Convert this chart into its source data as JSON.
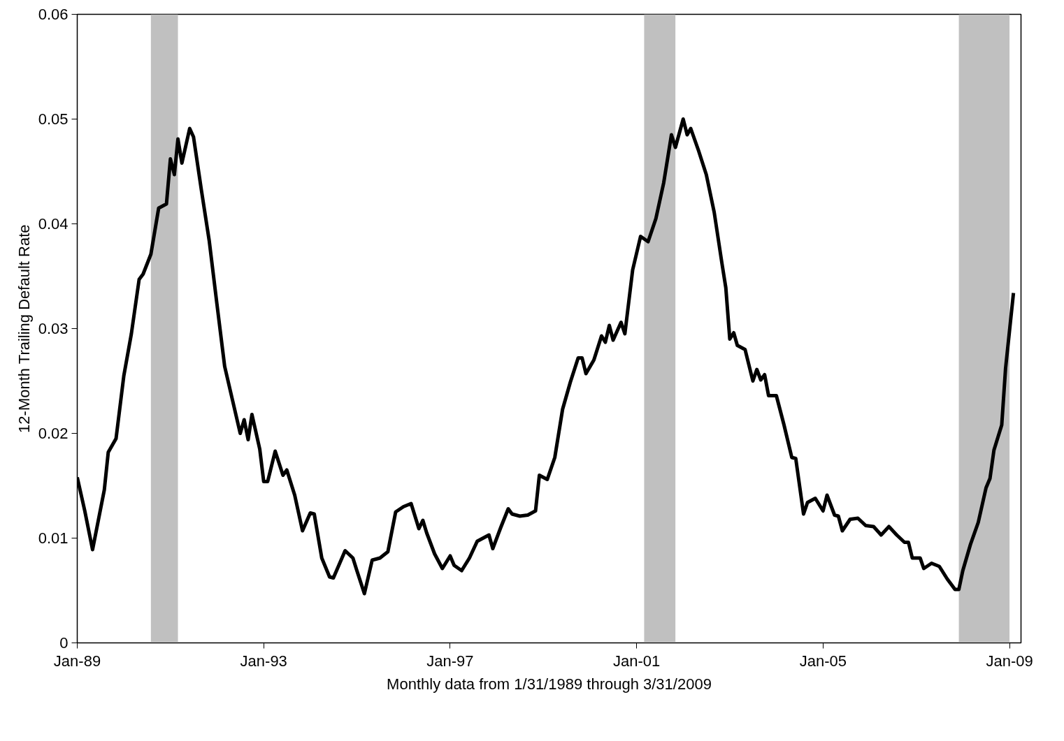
{
  "chart_data": {
    "type": "line",
    "xlabel": "Monthly data from 1/31/1989 through 3/31/2009",
    "ylabel": "12-Month Trailing Default Rate",
    "x": [
      "1989-01",
      "1989-03",
      "1989-05",
      "1989-08",
      "1989-09",
      "1989-11",
      "1990-01",
      "1990-03",
      "1990-05",
      "1990-06",
      "1990-08",
      "1990-10",
      "1990-12",
      "1991-01",
      "1991-02",
      "1991-03",
      "1991-04",
      "1991-06",
      "1991-07",
      "1991-09",
      "1991-11",
      "1992-01",
      "1992-03",
      "1992-05",
      "1992-07",
      "1992-08",
      "1992-09",
      "1992-10",
      "1992-12",
      "1993-01",
      "1993-02",
      "1993-04",
      "1993-06",
      "1993-07",
      "1993-09",
      "1993-11",
      "1994-01",
      "1994-02",
      "1994-04",
      "1994-06",
      "1994-07",
      "1994-10",
      "1994-12",
      "1995-01",
      "1995-03",
      "1995-05",
      "1995-07",
      "1995-09",
      "1995-11",
      "1996-01",
      "1996-03",
      "1996-05",
      "1996-06",
      "1996-07",
      "1996-09",
      "1996-11",
      "1997-01",
      "1997-02",
      "1997-04",
      "1997-06",
      "1997-08",
      "1997-11",
      "1997-12",
      "1998-02",
      "1998-04",
      "1998-05",
      "1998-07",
      "1998-09",
      "1998-11",
      "1998-12",
      "1999-02",
      "1999-04",
      "1999-06",
      "1999-08",
      "1999-10",
      "1999-11",
      "1999-12",
      "2000-02",
      "2000-04",
      "2000-05",
      "2000-06",
      "2000-07",
      "2000-09",
      "2000-10",
      "2000-12",
      "2001-02",
      "2001-04",
      "2001-06",
      "2001-08",
      "2001-10",
      "2001-11",
      "2002-01",
      "2002-02",
      "2002-03",
      "2002-05",
      "2002-07",
      "2002-09",
      "2002-11",
      "2002-12",
      "2003-01",
      "2003-02",
      "2003-03",
      "2003-05",
      "2003-07",
      "2003-08",
      "2003-09",
      "2003-10",
      "2003-11",
      "2004-01",
      "2004-03",
      "2004-05",
      "2004-06",
      "2004-08",
      "2004-09",
      "2004-11",
      "2005-01",
      "2005-02",
      "2005-04",
      "2005-05",
      "2005-06",
      "2005-08",
      "2005-10",
      "2005-12",
      "2006-02",
      "2006-04",
      "2006-06",
      "2006-08",
      "2006-10",
      "2006-11",
      "2006-12",
      "2007-02",
      "2007-03",
      "2007-05",
      "2007-07",
      "2007-09",
      "2007-11",
      "2007-12",
      "2008-01",
      "2008-03",
      "2008-05",
      "2008-07",
      "2008-08",
      "2008-09",
      "2008-11",
      "2008-12",
      "2009-01",
      "2009-02"
    ],
    "series": [
      {
        "color": "#000000",
        "values": [
          0.0158,
          0.0126,
          0.0089,
          0.0146,
          0.0182,
          0.0195,
          0.0255,
          0.0295,
          0.0347,
          0.0352,
          0.0371,
          0.0415,
          0.0419,
          0.0462,
          0.0447,
          0.0481,
          0.0458,
          0.0491,
          0.0483,
          0.0432,
          0.0384,
          0.0323,
          0.0264,
          0.0232,
          0.02,
          0.0213,
          0.0194,
          0.0218,
          0.0185,
          0.0154,
          0.0154,
          0.0183,
          0.016,
          0.0165,
          0.0141,
          0.0107,
          0.0124,
          0.0123,
          0.0081,
          0.0063,
          0.0062,
          0.0088,
          0.0081,
          0.0069,
          0.0047,
          0.0079,
          0.0081,
          0.0087,
          0.0125,
          0.013,
          0.0133,
          0.0109,
          0.0117,
          0.0105,
          0.0085,
          0.0071,
          0.0083,
          0.0074,
          0.0069,
          0.0081,
          0.0097,
          0.0103,
          0.009,
          0.011,
          0.0128,
          0.0123,
          0.0121,
          0.0122,
          0.0126,
          0.016,
          0.0156,
          0.0177,
          0.0223,
          0.0249,
          0.0272,
          0.0272,
          0.0257,
          0.027,
          0.0293,
          0.0287,
          0.0303,
          0.0289,
          0.0306,
          0.0295,
          0.0356,
          0.0388,
          0.0383,
          0.0405,
          0.0439,
          0.0485,
          0.0473,
          0.05,
          0.0485,
          0.0491,
          0.047,
          0.0447,
          0.0411,
          0.0362,
          0.0339,
          0.029,
          0.0296,
          0.0284,
          0.028,
          0.025,
          0.0261,
          0.0251,
          0.0256,
          0.0236,
          0.0236,
          0.0208,
          0.0177,
          0.0176,
          0.0123,
          0.0134,
          0.0138,
          0.0126,
          0.0141,
          0.0122,
          0.0121,
          0.0107,
          0.0118,
          0.0119,
          0.0112,
          0.0111,
          0.0103,
          0.0111,
          0.0103,
          0.0096,
          0.0096,
          0.0081,
          0.0081,
          0.0071,
          0.0076,
          0.0073,
          0.0061,
          0.0051,
          0.0051,
          0.0069,
          0.0094,
          0.0115,
          0.0148,
          0.0157,
          0.0184,
          0.0208,
          0.0262,
          0.0298,
          0.0334
        ]
      }
    ],
    "xlim": [
      "1989-01",
      "2009-04"
    ],
    "xticks": [
      {
        "value": "1989-01",
        "label": "Jan-89"
      },
      {
        "value": "1993-01",
        "label": "Jan-93"
      },
      {
        "value": "1997-01",
        "label": "Jan-97"
      },
      {
        "value": "2001-01",
        "label": "Jan-01"
      },
      {
        "value": "2005-01",
        "label": "Jan-05"
      },
      {
        "value": "2009-01",
        "label": "Jan-09"
      }
    ],
    "ylim": [
      0,
      0.06
    ],
    "yticks": [
      0,
      0.01,
      0.02,
      0.03,
      0.04,
      0.05,
      0.06
    ],
    "bands": [
      {
        "axis": "x",
        "from": "1990-08",
        "to": "1991-03",
        "color": "#c0c0c0"
      },
      {
        "axis": "x",
        "from": "2001-03",
        "to": "2001-11",
        "color": "#c0c0c0"
      },
      {
        "axis": "x",
        "from": "2007-12",
        "to": "2009-01",
        "color": "#c0c0c0"
      }
    ],
    "marker": "none",
    "line_style": "solid"
  }
}
